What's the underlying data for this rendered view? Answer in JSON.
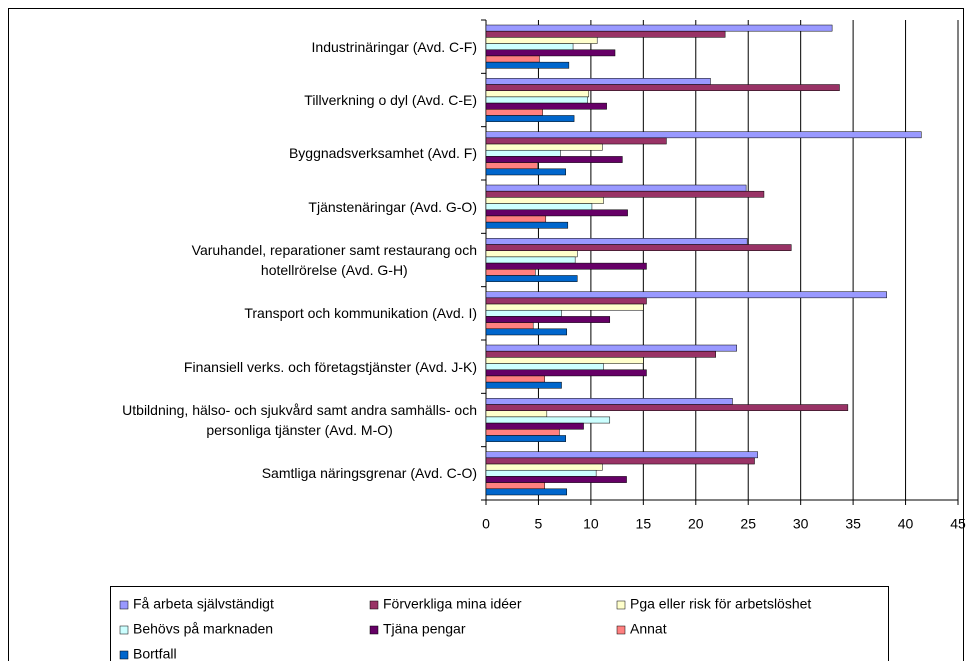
{
  "chart_data": {
    "type": "bar",
    "orientation": "horizontal",
    "categories": [
      "Industrinäringar (Avd. C-F)",
      "Tillverkning o dyl (Avd. C-E)",
      "Byggnadsverksamhet (Avd. F)",
      "Tjänstenäringar (Avd. G-O)",
      "Varuhandel, reparationer samt restaurang och\nhotellrörelse (Avd. G-H)",
      "Transport och kommunikation (Avd. I)",
      "Finansiell verks. och företagstjänster (Avd. J-K)",
      "Utbildning, hälso- och sjukvård samt andra samhälls- och\npersonliga tjänster (Avd. M-O)",
      "Samtliga näringsgrenar (Avd. C-O)"
    ],
    "series": [
      {
        "name": "Få arbeta självständigt",
        "color": "#9999ff",
        "values": [
          33.0,
          21.4,
          41.5,
          24.8,
          24.9,
          38.2,
          23.9,
          23.5,
          25.9
        ]
      },
      {
        "name": "Förverkliga mina idéer",
        "color": "#993366",
        "values": [
          22.8,
          33.7,
          17.2,
          26.5,
          29.1,
          15.3,
          21.9,
          34.5,
          25.6
        ]
      },
      {
        "name": "Pga eller risk för arbetslöshet",
        "color": "#ffffcc",
        "values": [
          10.6,
          9.8,
          11.1,
          11.2,
          8.7,
          15.0,
          15.0,
          5.8,
          11.1
        ]
      },
      {
        "name": "Behövs på marknaden",
        "color": "#ccffff",
        "values": [
          8.3,
          9.7,
          7.1,
          10.1,
          8.5,
          7.2,
          11.2,
          11.8,
          10.5
        ]
      },
      {
        "name": "Tjäna pengar",
        "color": "#660066",
        "values": [
          12.3,
          11.5,
          13.0,
          13.5,
          15.3,
          11.8,
          15.3,
          9.3,
          13.4
        ]
      },
      {
        "name": "Annat",
        "color": "#ff8080",
        "values": [
          5.1,
          5.4,
          4.9,
          5.7,
          4.7,
          4.5,
          5.6,
          7.0,
          5.6
        ]
      },
      {
        "name": "Bortfall",
        "color": "#0066cc",
        "values": [
          7.9,
          8.4,
          7.6,
          7.8,
          8.7,
          7.7,
          7.2,
          7.6,
          7.7
        ]
      }
    ],
    "xlim": [
      0,
      45
    ],
    "xticks": [
      0,
      5,
      10,
      15,
      20,
      25,
      30,
      35,
      40,
      45
    ],
    "grid": true,
    "legend": "bottom"
  }
}
